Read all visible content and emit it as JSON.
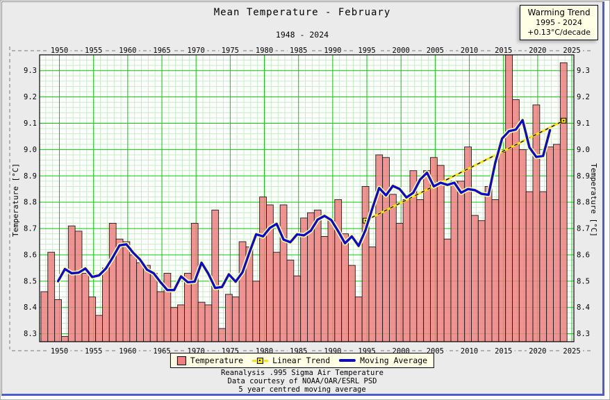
{
  "header": {
    "title": "Mean Temperature - February",
    "subtitle": "1948 - 2024"
  },
  "warming_box": {
    "title": "Warming Trend",
    "period": "1995 - 2024",
    "rate": "+0.13°C/decade"
  },
  "legend": {
    "items": [
      {
        "icon": "bar-swatch",
        "label": "Temperature"
      },
      {
        "icon": "trend-marker",
        "label": "Linear Trend"
      },
      {
        "icon": "line-swatch",
        "label": "Moving Average"
      }
    ]
  },
  "footer": {
    "line1": "Reanalysis .995 Sigma Air Temperature",
    "line2": "Data courtesy of NOAA/OAR/ESRL PSD",
    "line3": "5 year centred moving average"
  },
  "chart_data": {
    "type": "bar",
    "title": "Mean Temperature - February",
    "subtitle": "1948 - 2024",
    "xlabel": "",
    "ylabel": "Temperature [°C]",
    "ylim": [
      8.27,
      9.36
    ],
    "xlim": [
      1947.1,
      2025.3
    ],
    "grid": true,
    "legend_position": "bottom",
    "x_major_ticks": [
      1950,
      1955,
      1960,
      1965,
      1970,
      1975,
      1980,
      1985,
      1990,
      1995,
      2000,
      2005,
      2010,
      2015,
      2020,
      2025
    ],
    "y_major_ticks": [
      8.3,
      8.4,
      8.5,
      8.6,
      8.7,
      8.8,
      8.9,
      9.0,
      9.1,
      9.2,
      9.3
    ],
    "x_minor_step": 1,
    "y_minor_step": 0.02,
    "years": [
      1948,
      1949,
      1950,
      1951,
      1952,
      1953,
      1954,
      1955,
      1956,
      1957,
      1958,
      1959,
      1960,
      1961,
      1962,
      1963,
      1964,
      1965,
      1966,
      1967,
      1968,
      1969,
      1970,
      1971,
      1972,
      1973,
      1974,
      1975,
      1976,
      1977,
      1978,
      1979,
      1980,
      1981,
      1982,
      1983,
      1984,
      1985,
      1986,
      1987,
      1988,
      1989,
      1990,
      1991,
      1992,
      1993,
      1994,
      1995,
      1996,
      1997,
      1998,
      1999,
      2000,
      2001,
      2002,
      2003,
      2004,
      2005,
      2006,
      2007,
      2008,
      2009,
      2010,
      2011,
      2012,
      2013,
      2014,
      2015,
      2016,
      2017,
      2018,
      2019,
      2020,
      2021,
      2022,
      2023,
      2024
    ],
    "series": [
      {
        "name": "Temperature",
        "type": "bar",
        "values": [
          8.46,
          8.61,
          8.43,
          8.29,
          8.71,
          8.69,
          8.53,
          8.44,
          8.37,
          8.55,
          8.72,
          8.66,
          8.65,
          8.6,
          8.57,
          8.56,
          8.53,
          8.46,
          8.53,
          8.4,
          8.41,
          8.53,
          8.72,
          8.42,
          8.41,
          8.77,
          8.32,
          8.45,
          8.44,
          8.65,
          8.63,
          8.5,
          8.82,
          8.79,
          8.61,
          8.79,
          8.58,
          8.52,
          8.74,
          8.76,
          8.77,
          8.67,
          8.73,
          8.81,
          8.68,
          8.56,
          8.44,
          8.86,
          8.63,
          8.98,
          8.97,
          8.83,
          8.72,
          8.81,
          8.92,
          8.81,
          8.92,
          8.97,
          8.94,
          8.66,
          8.88,
          8.88,
          9.01,
          8.75,
          8.73,
          8.86,
          8.81,
          8.99,
          9.36,
          9.19,
          9.0,
          8.84,
          9.17,
          8.84,
          9.01,
          9.02,
          9.33
        ]
      },
      {
        "name": "Linear Trend",
        "type": "line",
        "style": "yellow-black-dashed",
        "points": [
          [
            1995,
            8.73
          ],
          [
            2024,
            9.11
          ]
        ],
        "rate_per_decade": 0.13
      },
      {
        "name": "Moving Average",
        "type": "line",
        "style": "blue-thick",
        "derived": "5-year centred moving average of Temperature",
        "window": 5
      }
    ],
    "colors": {
      "bar_fill": "#f08080",
      "bar_stroke": "#1a1a1a",
      "grid_major": "#00cc00",
      "grid_minor": "#c4eec4",
      "trend": "#ffe400",
      "trend_dash": "#000000",
      "moving_average": "#0b0bd0",
      "ma_halo": "#ffff9e",
      "plot_bg": "#ffffff",
      "figure_bg": "#ebebeb",
      "box_bg": "#ffffe6"
    }
  }
}
